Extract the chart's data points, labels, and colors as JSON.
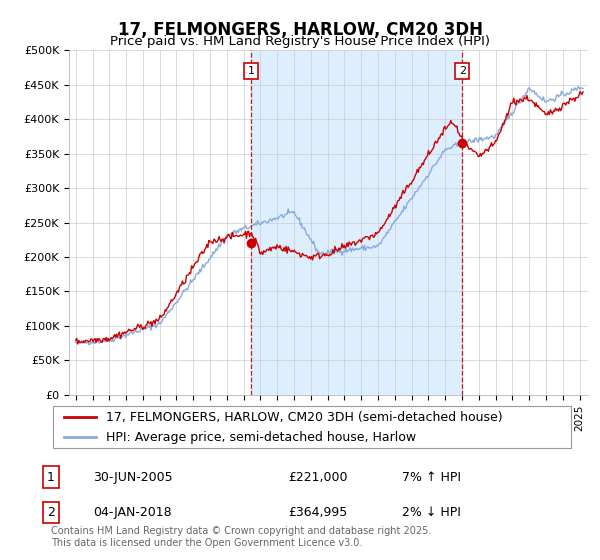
{
  "title": "17, FELMONGERS, HARLOW, CM20 3DH",
  "subtitle": "Price paid vs. HM Land Registry's House Price Index (HPI)",
  "ylim": [
    0,
    500000
  ],
  "yticks": [
    0,
    50000,
    100000,
    150000,
    200000,
    250000,
    300000,
    350000,
    400000,
    450000,
    500000
  ],
  "ytick_labels": [
    "£0",
    "£50K",
    "£100K",
    "£150K",
    "£200K",
    "£250K",
    "£300K",
    "£350K",
    "£400K",
    "£450K",
    "£500K"
  ],
  "line1_color": "#cc0000",
  "line2_color": "#88aadd",
  "marker_color": "#cc0000",
  "shade_color": "#ddeeff",
  "grid_color": "#cccccc",
  "background_color": "#ffffff",
  "legend_label1": "17, FELMONGERS, HARLOW, CM20 3DH (semi-detached house)",
  "legend_label2": "HPI: Average price, semi-detached house, Harlow",
  "annotation1_num": "1",
  "annotation1_date": "30-JUN-2005",
  "annotation1_price": "£221,000",
  "annotation1_hpi": "7% ↑ HPI",
  "annotation2_num": "2",
  "annotation2_date": "04-JAN-2018",
  "annotation2_price": "£364,995",
  "annotation2_hpi": "2% ↓ HPI",
  "footnote": "Contains HM Land Registry data © Crown copyright and database right 2025.\nThis data is licensed under the Open Government Licence v3.0.",
  "trans1_x": 2005.45,
  "trans1_y": 221000,
  "trans2_x": 2018.02,
  "trans2_y": 364995,
  "xmin": 1994.6,
  "xmax": 2025.5,
  "title_fontsize": 12,
  "subtitle_fontsize": 9.5,
  "tick_fontsize": 8,
  "legend_fontsize": 9,
  "annotation_fontsize": 9,
  "footnote_fontsize": 7
}
